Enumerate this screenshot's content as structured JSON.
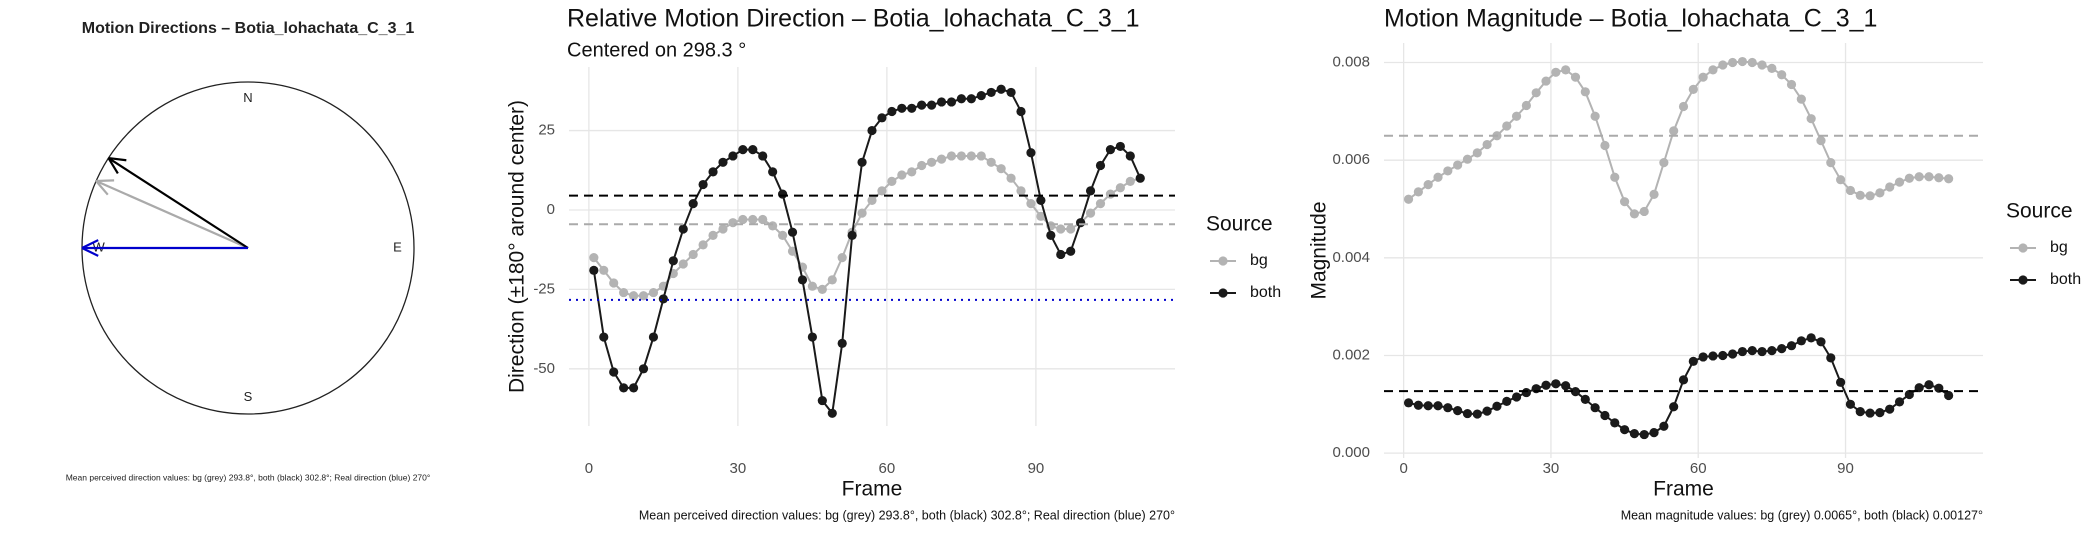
{
  "chart_data": [
    {
      "type": "compass",
      "title": "Motion Directions – Botia_lohachata_C_3_1",
      "cardinals": [
        "N",
        "E",
        "S",
        "W"
      ],
      "directions": [
        {
          "name": "bg",
          "color": "#aaaaaa",
          "value": 293.8
        },
        {
          "name": "both",
          "color": "#000000",
          "value": 302.8
        },
        {
          "name": "Real direction",
          "color": "#0000cc",
          "value": 270
        }
      ],
      "caption": "Mean perceived direction values: bg (grey) 293.8°, both (black) 302.8°; Real direction (blue) 270°"
    },
    {
      "type": "line",
      "title": "Relative Motion Direction – Botia_lohachata_C_3_1",
      "subtitle": "Centered on  298.3 °",
      "x_label": "Frame",
      "y_label": "Direction (±180° around center)",
      "caption": "Mean perceived direction values: bg (grey) 293.8°, both (black) 302.8°; Real direction (blue) 270°",
      "legend_title": "Source",
      "grid": true,
      "xlim": [
        -4,
        118
      ],
      "xticks": [
        0,
        30,
        60,
        90
      ],
      "ylim": [
        -68,
        45
      ],
      "yticks": [
        -50,
        -25,
        0,
        25
      ],
      "x": [
        1,
        3,
        5,
        7,
        9,
        11,
        13,
        15,
        17,
        19,
        21,
        23,
        25,
        27,
        29,
        31,
        33,
        35,
        37,
        39,
        41,
        43,
        45,
        47,
        49,
        51,
        53,
        55,
        57,
        59,
        61,
        63,
        65,
        67,
        69,
        71,
        73,
        75,
        77,
        79,
        81,
        83,
        85,
        87,
        89,
        91,
        93,
        95,
        97,
        99,
        101,
        103,
        105,
        107,
        109,
        111
      ],
      "series": [
        {
          "name": "bg",
          "color": "#b3b3b3",
          "values": [
            -15,
            -19,
            -23,
            -26,
            -27,
            -27,
            -26,
            -24,
            -20,
            -17,
            -14,
            -11,
            -8,
            -6,
            -4,
            -3,
            -3,
            -3,
            -5,
            -8,
            -13,
            -18,
            -24,
            -25,
            -22,
            -15,
            -7,
            -1,
            3,
            6,
            9,
            11,
            12,
            14,
            15,
            16,
            17,
            17,
            17,
            17,
            15,
            13,
            10,
            6,
            2,
            -2,
            -5,
            -6,
            -6,
            -4,
            -1,
            2,
            5,
            7,
            9,
            10
          ]
        },
        {
          "name": "both",
          "color": "#1a1a1a",
          "values": [
            -19,
            -40,
            -51,
            -56,
            -56,
            -50,
            -40,
            -28,
            -16,
            -6,
            2,
            8,
            12,
            15,
            17,
            19,
            19,
            17,
            12,
            5,
            -7,
            -22,
            -40,
            -60,
            -64,
            -42,
            -8,
            15,
            25,
            29,
            31,
            32,
            32,
            33,
            33,
            34,
            34,
            35,
            35,
            36,
            37,
            38,
            37,
            31,
            18,
            3,
            -8,
            -14,
            -13,
            -4,
            6,
            14,
            19,
            20,
            17,
            10
          ]
        }
      ],
      "hlines": [
        {
          "value": 4.5,
          "color": "#000000",
          "dash": "dashed"
        },
        {
          "value": -4.5,
          "color": "#aaaaaa",
          "dash": "dashed"
        },
        {
          "value": -28.3,
          "color": "#0000cc",
          "dash": "dotted"
        }
      ]
    },
    {
      "type": "line",
      "title": "Motion Magnitude – Botia_lohachata_C_3_1",
      "x_label": "Frame",
      "y_label": "Magnitude",
      "caption": "Mean magnitude values: bg (grey) 0.0065°, both (black) 0.00127°",
      "legend_title": "Source",
      "grid": true,
      "xlim": [
        -4,
        118
      ],
      "xticks": [
        0,
        30,
        60,
        90
      ],
      "ylim": [
        -0.0001,
        0.0084
      ],
      "yticks": [
        {
          "value": 0,
          "label": "0.000"
        },
        {
          "value": 0.002,
          "label": "0.002"
        },
        {
          "value": 0.004,
          "label": "0.004"
        },
        {
          "value": 0.006,
          "label": "0.006"
        },
        {
          "value": 0.008,
          "label": "0.008"
        }
      ],
      "x": [
        1,
        3,
        5,
        7,
        9,
        11,
        13,
        15,
        17,
        19,
        21,
        23,
        25,
        27,
        29,
        31,
        33,
        35,
        37,
        39,
        41,
        43,
        45,
        47,
        49,
        51,
        53,
        55,
        57,
        59,
        61,
        63,
        65,
        67,
        69,
        71,
        73,
        75,
        77,
        79,
        81,
        83,
        85,
        87,
        89,
        91,
        93,
        95,
        97,
        99,
        101,
        103,
        105,
        107,
        109,
        111
      ],
      "series": [
        {
          "name": "bg",
          "color": "#b3b3b3",
          "values": [
            0.0052,
            0.00535,
            0.0055,
            0.00565,
            0.00578,
            0.0059,
            0.00602,
            0.00615,
            0.00632,
            0.0065,
            0.0067,
            0.0069,
            0.00712,
            0.00738,
            0.00762,
            0.0078,
            0.00785,
            0.0077,
            0.0074,
            0.0069,
            0.0063,
            0.00565,
            0.00515,
            0.0049,
            0.00495,
            0.0053,
            0.00595,
            0.0066,
            0.0071,
            0.00745,
            0.0077,
            0.00785,
            0.00795,
            0.008,
            0.00802,
            0.008,
            0.00795,
            0.00788,
            0.00775,
            0.00755,
            0.00725,
            0.00685,
            0.0064,
            0.00595,
            0.0056,
            0.00538,
            0.00528,
            0.00527,
            0.00533,
            0.00545,
            0.00555,
            0.00563,
            0.00566,
            0.00566,
            0.00564,
            0.00562
          ]
        },
        {
          "name": "both",
          "color": "#1a1a1a",
          "values": [
            0.00103,
            0.00098,
            0.00097,
            0.00097,
            0.00093,
            0.00087,
            0.00081,
            0.0008,
            0.00086,
            0.00096,
            0.00106,
            0.00115,
            0.00124,
            0.00132,
            0.00139,
            0.00142,
            0.00138,
            0.00126,
            0.0011,
            0.00093,
            0.00077,
            0.00062,
            0.00048,
            0.0004,
            0.00038,
            0.00042,
            0.00055,
            0.00095,
            0.0015,
            0.00188,
            0.00197,
            0.00199,
            0.002,
            0.00203,
            0.00208,
            0.0021,
            0.00208,
            0.0021,
            0.00214,
            0.0022,
            0.0023,
            0.00236,
            0.00228,
            0.00195,
            0.00145,
            0.001,
            0.00085,
            0.00082,
            0.00083,
            0.0009,
            0.00105,
            0.0012,
            0.00134,
            0.0014,
            0.00133,
            0.00118
          ]
        }
      ],
      "hlines": [
        {
          "value": 0.0065,
          "color": "#aaaaaa",
          "dash": "dashed"
        },
        {
          "value": 0.00127,
          "color": "#000000",
          "dash": "dashed"
        }
      ]
    }
  ]
}
